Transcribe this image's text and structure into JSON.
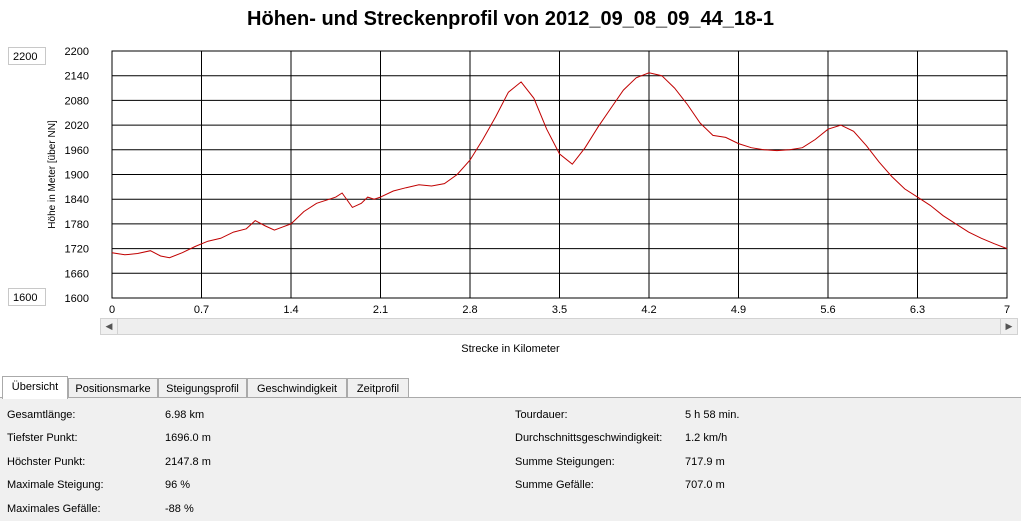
{
  "title": "Höhen- und Streckenprofil von 2012_09_08_09_44_18-1",
  "side_labels": {
    "top": "2200",
    "bottom": "1600"
  },
  "chart_data": {
    "type": "line",
    "ylabel": "Höhe in Meter [über NN]",
    "xlabel": "Strecke in Kilometer",
    "xlim": [
      0,
      7
    ],
    "ylim": [
      1600,
      2200
    ],
    "x_ticks": [
      "0",
      "0.7",
      "1.4",
      "2.1",
      "2.8",
      "3.5",
      "4.2",
      "4.9",
      "5.6",
      "6.3",
      "7"
    ],
    "y_ticks": [
      "2200",
      "2140",
      "2080",
      "2020",
      "1960",
      "1900",
      "1840",
      "1780",
      "1720",
      "1660",
      "1600"
    ],
    "grid": true,
    "line_color": "#c00000",
    "series": [
      {
        "x": [
          0,
          0.1,
          0.2,
          0.3,
          0.38,
          0.45,
          0.55,
          0.65,
          0.75,
          0.85,
          0.95,
          1.05,
          1.12,
          1.2,
          1.27,
          1.33,
          1.4,
          1.5,
          1.6,
          1.7,
          1.75,
          1.8,
          1.88,
          1.95,
          2.0,
          2.05,
          2.1,
          2.2,
          2.3,
          2.4,
          2.5,
          2.6,
          2.7,
          2.8,
          2.9,
          3.0,
          3.1,
          3.2,
          3.3,
          3.4,
          3.5,
          3.6,
          3.7,
          3.8,
          3.9,
          4.0,
          4.1,
          4.2,
          4.3,
          4.4,
          4.5,
          4.6,
          4.7,
          4.8,
          4.9,
          5.0,
          5.1,
          5.2,
          5.3,
          5.4,
          5.5,
          5.6,
          5.7,
          5.8,
          5.9,
          6.0,
          6.1,
          6.2,
          6.3,
          6.4,
          6.5,
          6.6,
          6.7,
          6.8,
          6.9,
          7.0
        ],
        "y": [
          1710,
          1705,
          1708,
          1715,
          1702,
          1698,
          1710,
          1725,
          1738,
          1745,
          1760,
          1768,
          1788,
          1775,
          1765,
          1772,
          1780,
          1810,
          1830,
          1840,
          1845,
          1855,
          1820,
          1830,
          1845,
          1840,
          1845,
          1860,
          1868,
          1875,
          1872,
          1878,
          1900,
          1935,
          1985,
          2040,
          2100,
          2125,
          2085,
          2010,
          1950,
          1925,
          1965,
          2015,
          2060,
          2105,
          2135,
          2147,
          2140,
          2110,
          2070,
          2025,
          1995,
          1990,
          1975,
          1965,
          1960,
          1958,
          1960,
          1965,
          1985,
          2010,
          2020,
          2005,
          1970,
          1930,
          1895,
          1865,
          1845,
          1825,
          1800,
          1780,
          1760,
          1745,
          1732,
          1720
        ]
      }
    ]
  },
  "tabs": [
    {
      "label": "Übersicht",
      "active": true
    },
    {
      "label": "Positionsmarke",
      "active": false
    },
    {
      "label": "Steigungsprofil",
      "active": false
    },
    {
      "label": "Geschwindigkeit",
      "active": false
    },
    {
      "label": "Zeitprofil",
      "active": false
    }
  ],
  "stats_left": [
    {
      "label": "Gesamtlänge:",
      "value": "6.98 km"
    },
    {
      "label": "Tiefster Punkt:",
      "value": "1696.0 m"
    },
    {
      "label": "Höchster Punkt:",
      "value": "2147.8 m"
    },
    {
      "label": "Maximale Steigung:",
      "value": "96 %"
    },
    {
      "label": "Maximales Gefälle:",
      "value": "-88 %"
    }
  ],
  "stats_right": [
    {
      "label": "Tourdauer:",
      "value": "5 h 58 min."
    },
    {
      "label": "Durchschnittsgeschwindigkeit:",
      "value": "1.2 km/h"
    },
    {
      "label": "Summe Steigungen:",
      "value": "717.9 m"
    },
    {
      "label": "Summe Gefälle:",
      "value": "707.0 m"
    }
  ]
}
